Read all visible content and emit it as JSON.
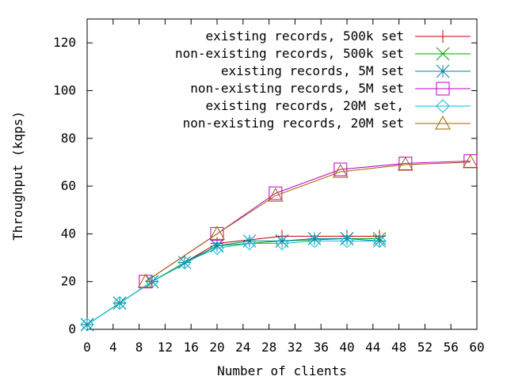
{
  "chart_data": {
    "type": "line",
    "title": "",
    "xlabel": "Number of clients",
    "ylabel": "Throughput (kqps)",
    "xlim": [
      0,
      60
    ],
    "ylim": [
      0,
      130
    ],
    "xticks": [
      0,
      4,
      8,
      12,
      16,
      20,
      24,
      28,
      32,
      36,
      40,
      44,
      48,
      52,
      56,
      60
    ],
    "yticks": [
      0,
      20,
      40,
      60,
      80,
      100,
      120
    ],
    "grid": false,
    "legend_position": "top-right",
    "series": [
      {
        "name": "existing records, 500k set",
        "color": "#c00000",
        "marker": "plus",
        "x": [
          0,
          5,
          10,
          20,
          30,
          40,
          45
        ],
        "y": [
          2,
          11,
          20,
          36,
          39,
          39,
          39
        ]
      },
      {
        "name": "non-existing records, 500k set",
        "color": "#00a000",
        "marker": "cross",
        "x": [
          0,
          5,
          10,
          20,
          30,
          40,
          45
        ],
        "y": [
          2,
          11,
          20,
          35,
          37,
          38,
          38
        ]
      },
      {
        "name": "existing records, 5M set",
        "color": "#0080a0",
        "marker": "star",
        "x": [
          0,
          5,
          10,
          15,
          20,
          25,
          30,
          35,
          40,
          45
        ],
        "y": [
          2,
          11,
          20,
          28,
          35,
          37,
          37,
          38,
          38,
          37
        ]
      },
      {
        "name": "non-existing records, 5M set",
        "color": "#c000c0",
        "marker": "square",
        "x": [
          9,
          20,
          29,
          39,
          49,
          59
        ],
        "y": [
          20,
          40,
          57,
          67,
          69.5,
          70.5
        ]
      },
      {
        "name": "existing records, 20M set,",
        "color": "#00c0e0",
        "marker": "diamond",
        "x": [
          0,
          5,
          10,
          15,
          20,
          25,
          30,
          35,
          40,
          45
        ],
        "y": [
          2,
          11,
          20,
          28,
          34,
          36,
          36,
          37,
          37,
          37
        ]
      },
      {
        "name": "non-existing records, 20M set",
        "color": "#a06000",
        "marker": "triangle",
        "x": [
          9,
          20,
          29,
          39,
          49,
          59
        ],
        "y": [
          20,
          40,
          56,
          66,
          69,
          70
        ]
      }
    ]
  }
}
